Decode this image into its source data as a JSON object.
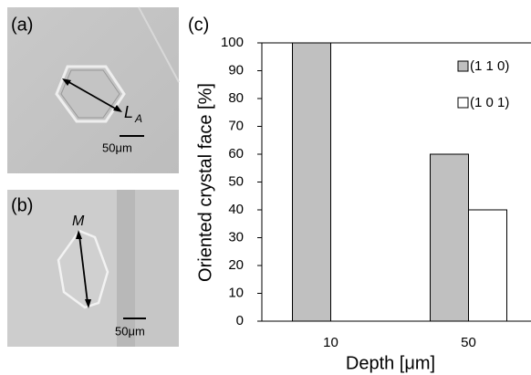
{
  "panels": {
    "a": {
      "label": "(a)",
      "annotation": "L",
      "annotation_sub": "A",
      "scale_bar": "50μm"
    },
    "b": {
      "label": "(b)",
      "annotation": "M",
      "scale_bar": "50μm"
    }
  },
  "chart_data": {
    "type": "bar",
    "panel_label": "(c)",
    "x_label": "Depth [μm]",
    "y_label": "Oriented crystal face [%]",
    "categories": [
      "10",
      "50"
    ],
    "series": [
      {
        "name": "(1 1 0)",
        "color": "#c0c0c0",
        "values": [
          100,
          60
        ]
      },
      {
        "name": "(1 0 1)",
        "color": "#ffffff",
        "values": [
          0,
          40
        ]
      }
    ],
    "ylim": [
      0,
      100
    ],
    "yticks": [
      0,
      10,
      20,
      30,
      40,
      50,
      60,
      70,
      80,
      90,
      100
    ],
    "grid": false,
    "legend": "upper right"
  }
}
